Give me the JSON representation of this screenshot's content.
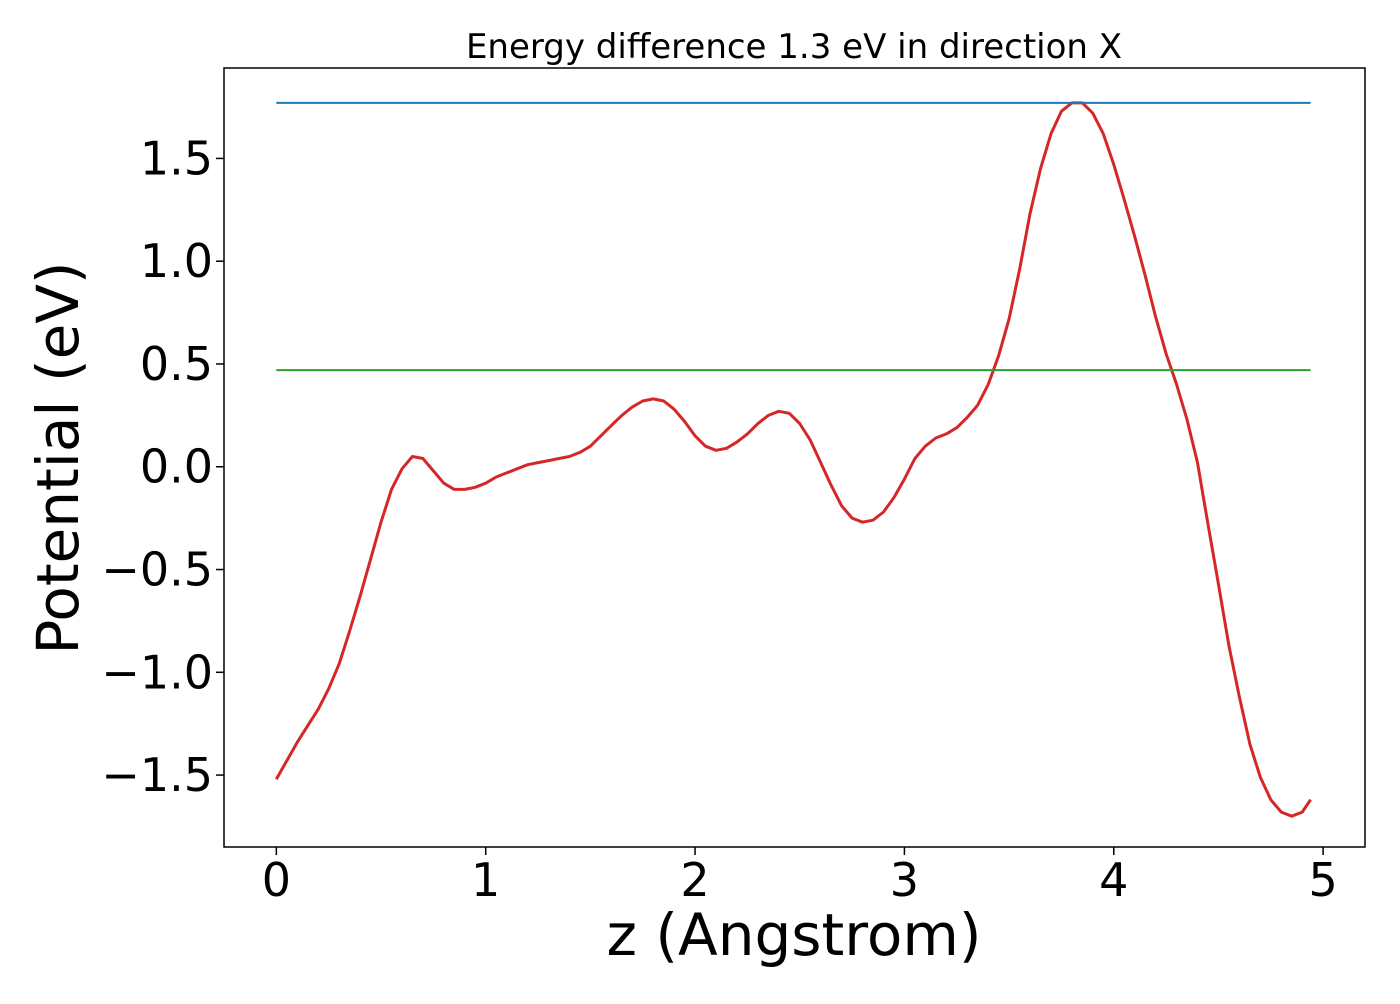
{
  "chart_data": {
    "type": "line",
    "title": "Energy difference 1.3 eV in direction X",
    "xlabel": "z (Angstrom)",
    "ylabel": "Potential (eV)",
    "xlim": [
      -0.25,
      5.2
    ],
    "ylim": [
      -1.85,
      1.94
    ],
    "xticks": [
      0,
      1,
      2,
      3,
      4,
      5
    ],
    "xtick_labels": [
      "0",
      "1",
      "2",
      "3",
      "4",
      "5"
    ],
    "yticks": [
      -1.5,
      -1.0,
      -0.5,
      0.0,
      0.5,
      1.0,
      1.5
    ],
    "ytick_labels": [
      "−1.5",
      "−1.0",
      "−0.5",
      "0.0",
      "0.5",
      "1.0",
      "1.5"
    ],
    "grid": false,
    "series": [
      {
        "color": "#d62728",
        "x": [
          0.0,
          0.05,
          0.1,
          0.15,
          0.2,
          0.25,
          0.3,
          0.35,
          0.4,
          0.45,
          0.5,
          0.55,
          0.6,
          0.65,
          0.7,
          0.75,
          0.8,
          0.85,
          0.9,
          0.95,
          1.0,
          1.05,
          1.1,
          1.15,
          1.2,
          1.25,
          1.3,
          1.35,
          1.4,
          1.45,
          1.5,
          1.55,
          1.6,
          1.65,
          1.7,
          1.75,
          1.8,
          1.85,
          1.9,
          1.95,
          2.0,
          2.05,
          2.1,
          2.15,
          2.2,
          2.25,
          2.3,
          2.35,
          2.4,
          2.45,
          2.5,
          2.55,
          2.6,
          2.65,
          2.7,
          2.75,
          2.8,
          2.85,
          2.9,
          2.95,
          3.0,
          3.05,
          3.1,
          3.15,
          3.2,
          3.25,
          3.3,
          3.35,
          3.4,
          3.45,
          3.5,
          3.55,
          3.6,
          3.65,
          3.7,
          3.75,
          3.8,
          3.85,
          3.9,
          3.95,
          4.0,
          4.05,
          4.1,
          4.15,
          4.2,
          4.25,
          4.3,
          4.35,
          4.4,
          4.45,
          4.5,
          4.55,
          4.6,
          4.65,
          4.7,
          4.75,
          4.8,
          4.85,
          4.9,
          4.94
        ],
        "y": [
          -1.52,
          -1.43,
          -1.34,
          -1.26,
          -1.18,
          -1.08,
          -0.96,
          -0.8,
          -0.63,
          -0.45,
          -0.27,
          -0.11,
          -0.01,
          0.05,
          0.04,
          -0.02,
          -0.08,
          -0.11,
          -0.11,
          -0.1,
          -0.08,
          -0.05,
          -0.03,
          -0.01,
          0.01,
          0.02,
          0.03,
          0.04,
          0.05,
          0.07,
          0.1,
          0.15,
          0.2,
          0.25,
          0.29,
          0.32,
          0.33,
          0.32,
          0.28,
          0.22,
          0.15,
          0.1,
          0.08,
          0.09,
          0.12,
          0.16,
          0.21,
          0.25,
          0.27,
          0.26,
          0.21,
          0.13,
          0.02,
          -0.09,
          -0.19,
          -0.25,
          -0.27,
          -0.26,
          -0.22,
          -0.15,
          -0.06,
          0.04,
          0.1,
          0.14,
          0.16,
          0.19,
          0.24,
          0.3,
          0.4,
          0.54,
          0.72,
          0.96,
          1.23,
          1.45,
          1.62,
          1.73,
          1.77,
          1.77,
          1.72,
          1.62,
          1.47,
          1.3,
          1.12,
          0.93,
          0.73,
          0.55,
          0.4,
          0.23,
          0.02,
          -0.28,
          -0.57,
          -0.87,
          -1.12,
          -1.35,
          -1.51,
          -1.62,
          -1.68,
          -1.7,
          -1.68,
          -1.62
        ]
      },
      {
        "color": "#1f77b4",
        "x": [
          0.0,
          4.94
        ],
        "y": [
          1.77,
          1.77
        ]
      },
      {
        "color": "#2ca02c",
        "x": [
          0.0,
          4.94
        ],
        "y": [
          0.47,
          0.47
        ]
      }
    ]
  }
}
